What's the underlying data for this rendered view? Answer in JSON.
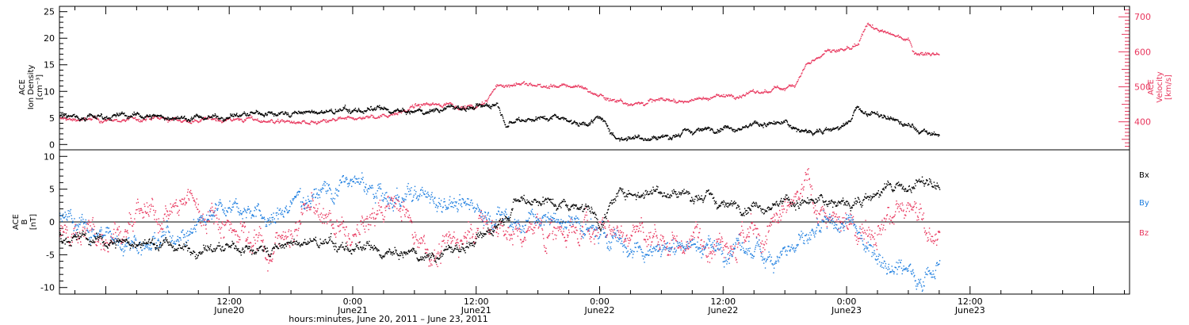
{
  "xaxis": {
    "title": "hours:minutes, June 20, 2011 – June 23, 2011",
    "range_hours": [
      -4.5,
      99.5
    ],
    "ticks": [
      {
        "h": 12,
        "time": "12:00",
        "day": "June20"
      },
      {
        "h": 24,
        "time": "0:00",
        "day": "June21"
      },
      {
        "h": 36,
        "time": "12:00",
        "day": "June21"
      },
      {
        "h": 48,
        "time": "0:00",
        "day": "June22"
      },
      {
        "h": 60,
        "time": "12:00",
        "day": "June22"
      },
      {
        "h": 72,
        "time": "0:00",
        "day": "June23"
      },
      {
        "h": 84,
        "time": "12:00",
        "day": "June23"
      }
    ]
  },
  "chart_data": [
    {
      "type": "scatter",
      "ylabel": [
        "ACE",
        "Ion Density",
        "[cm⁻³]"
      ],
      "ylim": [
        -1,
        26
      ],
      "yticks": [
        0,
        5,
        10,
        15,
        20,
        25
      ],
      "y2label": [
        "ACE",
        "Velocity",
        "[km/s]"
      ],
      "y2lim": [
        320,
        730
      ],
      "y2ticks": [
        400,
        500,
        600,
        700
      ],
      "series": [
        {
          "axis": "left",
          "color": "#000000",
          "x": [
            -4.5,
            0,
            4,
            8,
            12,
            16,
            20,
            24,
            27,
            30,
            33,
            36,
            38,
            39,
            40,
            42,
            44,
            46,
            48,
            49.5,
            51,
            54,
            57,
            60,
            62,
            64,
            66,
            67,
            68,
            70,
            72,
            73,
            74,
            76,
            78,
            80,
            81
          ],
          "y": [
            5.5,
            5.5,
            5.5,
            5,
            5.5,
            6,
            6,
            6.5,
            6.5,
            6,
            7,
            7,
            8,
            4,
            5,
            5,
            5.5,
            4,
            5,
            1.5,
            1.5,
            1.5,
            2.5,
            3.5,
            3.5,
            4,
            4,
            3,
            2.5,
            3,
            3.5,
            7,
            6,
            5,
            3.5,
            2,
            2
          ]
        },
        {
          "axis": "right",
          "color": "#e8365d",
          "x": [
            -4.5,
            0,
            4,
            8,
            12,
            16,
            20,
            24,
            27,
            30,
            33,
            36,
            37,
            38,
            40,
            42,
            44,
            46,
            48,
            50,
            52,
            54,
            56,
            58,
            60,
            62,
            64,
            66,
            67,
            68,
            70,
            72,
            73,
            74,
            76,
            78,
            78.5,
            80,
            81
          ],
          "y": [
            410,
            405,
            410,
            405,
            410,
            405,
            395,
            410,
            420,
            445,
            455,
            440,
            460,
            505,
            510,
            505,
            500,
            505,
            475,
            460,
            455,
            465,
            460,
            470,
            475,
            480,
            485,
            500,
            515,
            565,
            600,
            605,
            610,
            680,
            650,
            640,
            600,
            600,
            600
          ]
        }
      ]
    },
    {
      "type": "scatter",
      "ylabel": [
        "ACE",
        "B",
        "[nT]"
      ],
      "ylim": [
        -11,
        11
      ],
      "yticks": [
        -10,
        -5,
        0,
        5,
        10
      ],
      "legend_position": "right",
      "series": [
        {
          "name": "Bx",
          "color": "#000000",
          "x": [
            -4.5,
            0,
            4,
            8,
            12,
            16,
            20,
            24,
            28,
            32,
            36,
            38,
            40,
            44,
            47,
            48,
            50,
            54,
            58,
            60,
            64,
            68,
            72,
            76,
            80,
            81
          ],
          "y": [
            -2,
            -3,
            -3,
            -4,
            -4,
            -4,
            -3,
            -4,
            -5,
            -5,
            -3,
            0,
            4,
            3,
            2.5,
            0,
            4.5,
            5,
            4,
            2.5,
            3,
            3,
            3,
            5,
            6,
            5
          ]
        },
        {
          "name": "By",
          "color": "#1f7fe0",
          "x": [
            -4.5,
            0,
            4,
            8,
            12,
            16,
            20,
            24,
            28,
            32,
            36,
            40,
            44,
            48,
            52,
            56,
            60,
            64,
            68,
            72,
            76,
            80,
            81
          ],
          "y": [
            1,
            -2,
            -3,
            -1,
            4,
            0,
            5,
            6,
            3,
            4,
            2,
            0,
            0.5,
            -2,
            -4,
            -3,
            -4,
            -5,
            -3,
            0,
            -6,
            -8,
            -6
          ]
        },
        {
          "name": "Bz",
          "color": "#e8365d",
          "x": [
            -4.5,
            0,
            4,
            8,
            12,
            16,
            20,
            24,
            28,
            32,
            36,
            40,
            44,
            48,
            52,
            56,
            60,
            64,
            68,
            72,
            76,
            80,
            81
          ],
          "y": [
            -2,
            -1,
            0,
            3,
            0,
            -4,
            2,
            -3,
            4,
            -5,
            0,
            -2,
            -1,
            -1,
            -2,
            -3,
            -1,
            -3,
            5,
            -2,
            2,
            0,
            -2
          ]
        }
      ]
    }
  ]
}
